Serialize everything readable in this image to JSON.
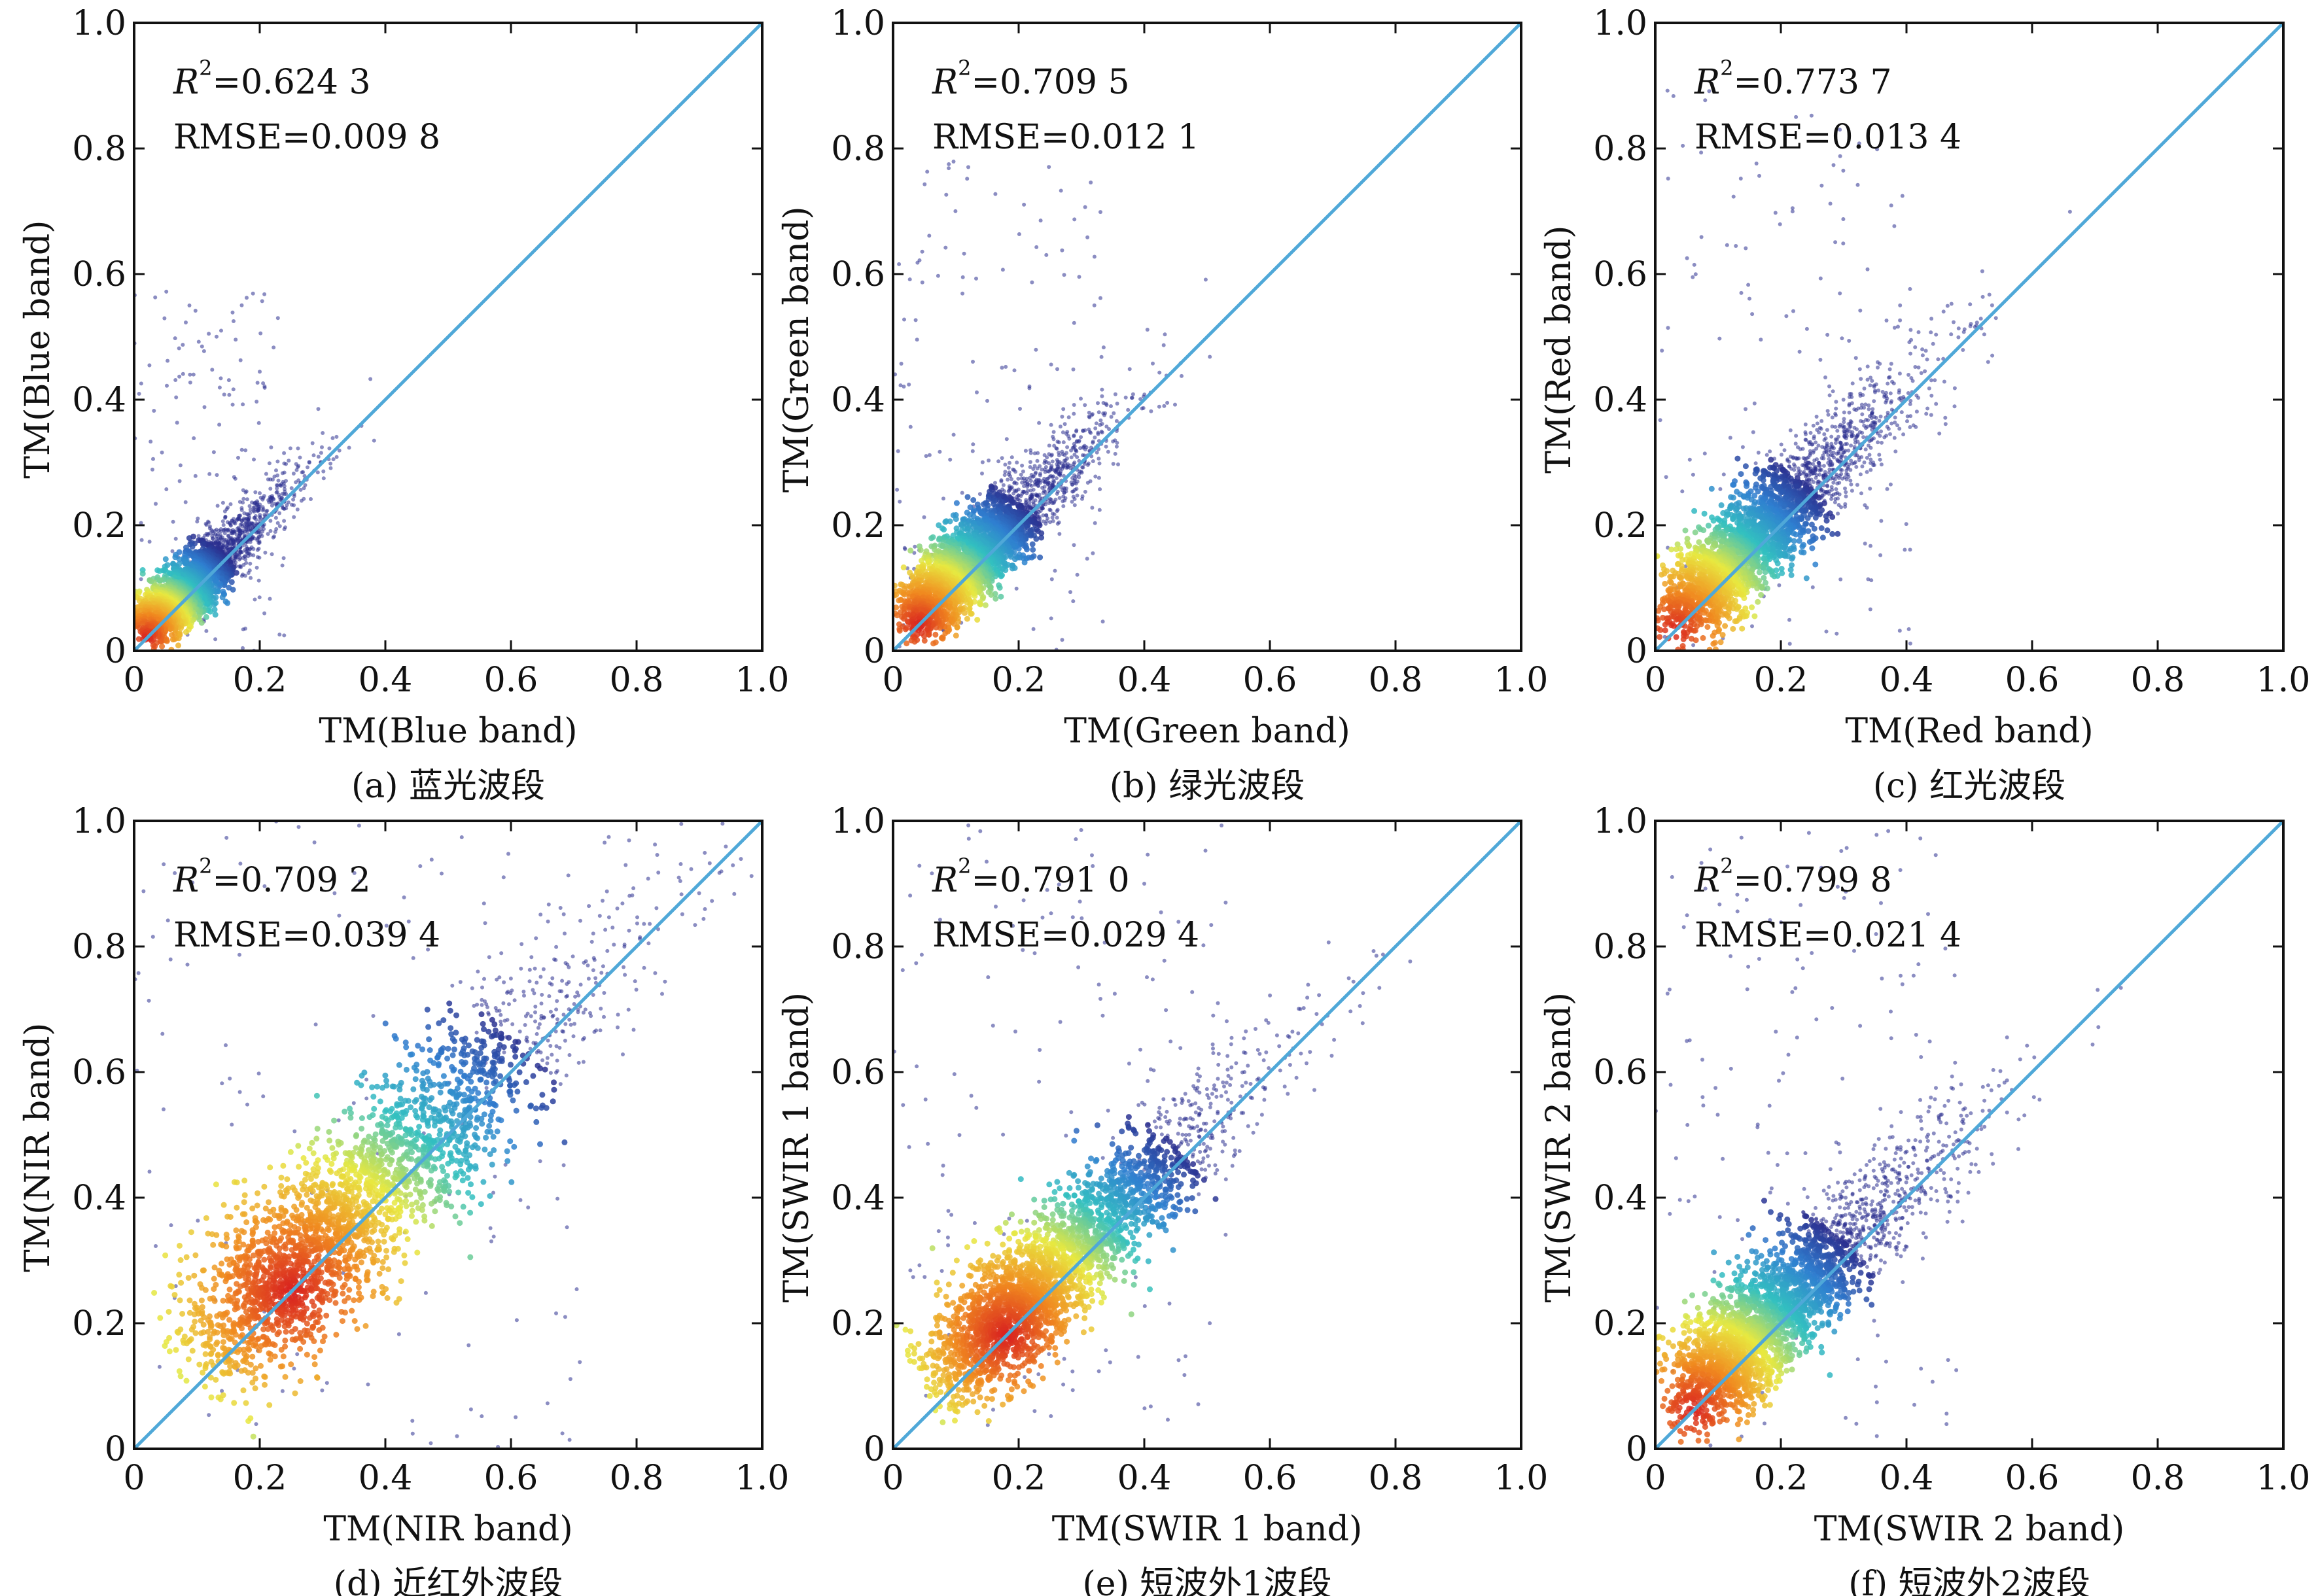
{
  "chart_data": [
    {
      "type": "scatter",
      "panel_label": "(a) 蓝光波段",
      "xlabel": "TM(Blue band)",
      "ylabel": "TM(Blue band)",
      "xlim": [
        0,
        1.0
      ],
      "ylim": [
        0,
        1.0
      ],
      "x_ticks": [
        "0",
        "0.2",
        "0.4",
        "0.6",
        "0.8",
        "1.0"
      ],
      "y_ticks": [
        "0",
        "0.2",
        "0.4",
        "0.6",
        "0.8",
        "1.0"
      ],
      "r2_label": "R",
      "r2_text": "=0.624 3",
      "rmse_text": "RMSE=0.009 8",
      "one_to_one_line": [
        [
          0,
          0
        ],
        [
          1.0,
          1.0
        ]
      ],
      "density_core": {
        "x_max": 0.2,
        "y_max": 0.22,
        "peak": [
          0.02,
          0.02
        ]
      },
      "colormap": [
        "#2b2f8f",
        "#2f7fd0",
        "#33c0c0",
        "#e8e840",
        "#f08a20",
        "#d82020"
      ],
      "line_color": "#4fa8d8"
    },
    {
      "type": "scatter",
      "panel_label": "(b) 绿光波段",
      "xlabel": "TM(Green band)",
      "ylabel": "TM(Green band)",
      "xlim": [
        0,
        1.0
      ],
      "ylim": [
        0,
        1.0
      ],
      "x_ticks": [
        "0",
        "0.2",
        "0.4",
        "0.6",
        "0.8",
        "1.0"
      ],
      "y_ticks": [
        "0",
        "0.2",
        "0.4",
        "0.6",
        "0.8",
        "1.0"
      ],
      "r2_label": "R",
      "r2_text": "=0.709 5",
      "rmse_text": "RMSE=0.012 1",
      "one_to_one_line": [
        [
          0,
          0
        ],
        [
          1.0,
          1.0
        ]
      ],
      "density_core": {
        "x_max": 0.28,
        "y_max": 0.3,
        "peak": [
          0.04,
          0.04
        ]
      },
      "colormap": [
        "#2b2f8f",
        "#2f7fd0",
        "#33c0c0",
        "#e8e840",
        "#f08a20",
        "#d82020"
      ],
      "line_color": "#4fa8d8"
    },
    {
      "type": "scatter",
      "panel_label": "(c) 红光波段",
      "xlabel": "TM(Red band)",
      "ylabel": "TM(Red band)",
      "xlim": [
        0,
        1.0
      ],
      "ylim": [
        0,
        1.0
      ],
      "x_ticks": [
        "0",
        "0.2",
        "0.4",
        "0.6",
        "0.8",
        "1.0"
      ],
      "y_ticks": [
        "0",
        "0.2",
        "0.4",
        "0.6",
        "0.8",
        "1.0"
      ],
      "r2_label": "R",
      "r2_text": "=0.773 7",
      "rmse_text": "RMSE=0.013 4",
      "one_to_one_line": [
        [
          0,
          0
        ],
        [
          1.0,
          1.0
        ]
      ],
      "density_core": {
        "x_max": 0.35,
        "y_max": 0.35,
        "peak": [
          0.03,
          0.03
        ]
      },
      "colormap": [
        "#2b2f8f",
        "#2f7fd0",
        "#33c0c0",
        "#e8e840",
        "#f08a20",
        "#d82020"
      ],
      "line_color": "#4fa8d8"
    },
    {
      "type": "scatter",
      "panel_label": "(d) 近红外波段",
      "xlabel": "TM(NIR band)",
      "ylabel": "TM(NIR band)",
      "xlim": [
        0,
        1.0
      ],
      "ylim": [
        0,
        1.0
      ],
      "x_ticks": [
        "0",
        "0.2",
        "0.4",
        "0.6",
        "0.8",
        "1.0"
      ],
      "y_ticks": [
        "0",
        "0.2",
        "0.4",
        "0.6",
        "0.8",
        "1.0"
      ],
      "r2_label": "R",
      "r2_text": "=0.709 2",
      "rmse_text": "RMSE=0.039 4",
      "one_to_one_line": [
        [
          0,
          0
        ],
        [
          1.0,
          1.0
        ]
      ],
      "density_core": {
        "x_max": 0.6,
        "y_max": 0.6,
        "peak": [
          0.25,
          0.25
        ]
      },
      "colormap": [
        "#2b2f8f",
        "#2f7fd0",
        "#33c0c0",
        "#e8e840",
        "#f08a20",
        "#d82020"
      ],
      "line_color": "#4fa8d8"
    },
    {
      "type": "scatter",
      "panel_label": "(e) 短波外1波段",
      "xlabel": "TM(SWIR 1 band)",
      "ylabel": "TM(SWIR 1 band)",
      "xlim": [
        0,
        1.0
      ],
      "ylim": [
        0,
        1.0
      ],
      "x_ticks": [
        "0",
        "0.2",
        "0.4",
        "0.6",
        "0.8",
        "1.0"
      ],
      "y_ticks": [
        "0",
        "0.2",
        "0.4",
        "0.6",
        "0.8",
        "1.0"
      ],
      "r2_label": "R",
      "r2_text": "=0.791 0",
      "rmse_text": "RMSE=0.029 4",
      "one_to_one_line": [
        [
          0,
          0
        ],
        [
          1.0,
          1.0
        ]
      ],
      "density_core": {
        "x_max": 0.45,
        "y_max": 0.45,
        "peak": [
          0.18,
          0.18
        ]
      },
      "colormap": [
        "#2b2f8f",
        "#2f7fd0",
        "#33c0c0",
        "#e8e840",
        "#f08a20",
        "#d82020"
      ],
      "line_color": "#4fa8d8"
    },
    {
      "type": "scatter",
      "panel_label": "(f) 短波外2波段",
      "xlabel": "TM(SWIR 2 band)",
      "ylabel": "TM(SWIR 2 band)",
      "xlim": [
        0,
        1.0
      ],
      "ylim": [
        0,
        1.0
      ],
      "x_ticks": [
        "0",
        "0.2",
        "0.4",
        "0.6",
        "0.8",
        "1.0"
      ],
      "y_ticks": [
        "0",
        "0.2",
        "0.4",
        "0.6",
        "0.8",
        "1.0"
      ],
      "r2_label": "R",
      "r2_text": "=0.799 8",
      "rmse_text": "RMSE=0.021 4",
      "one_to_one_line": [
        [
          0,
          0
        ],
        [
          1.0,
          1.0
        ]
      ],
      "density_core": {
        "x_max": 0.4,
        "y_max": 0.42,
        "peak": [
          0.06,
          0.06
        ]
      },
      "colormap": [
        "#2b2f8f",
        "#2f7fd0",
        "#33c0c0",
        "#e8e840",
        "#f08a20",
        "#d82020"
      ],
      "line_color": "#4fa8d8"
    }
  ]
}
